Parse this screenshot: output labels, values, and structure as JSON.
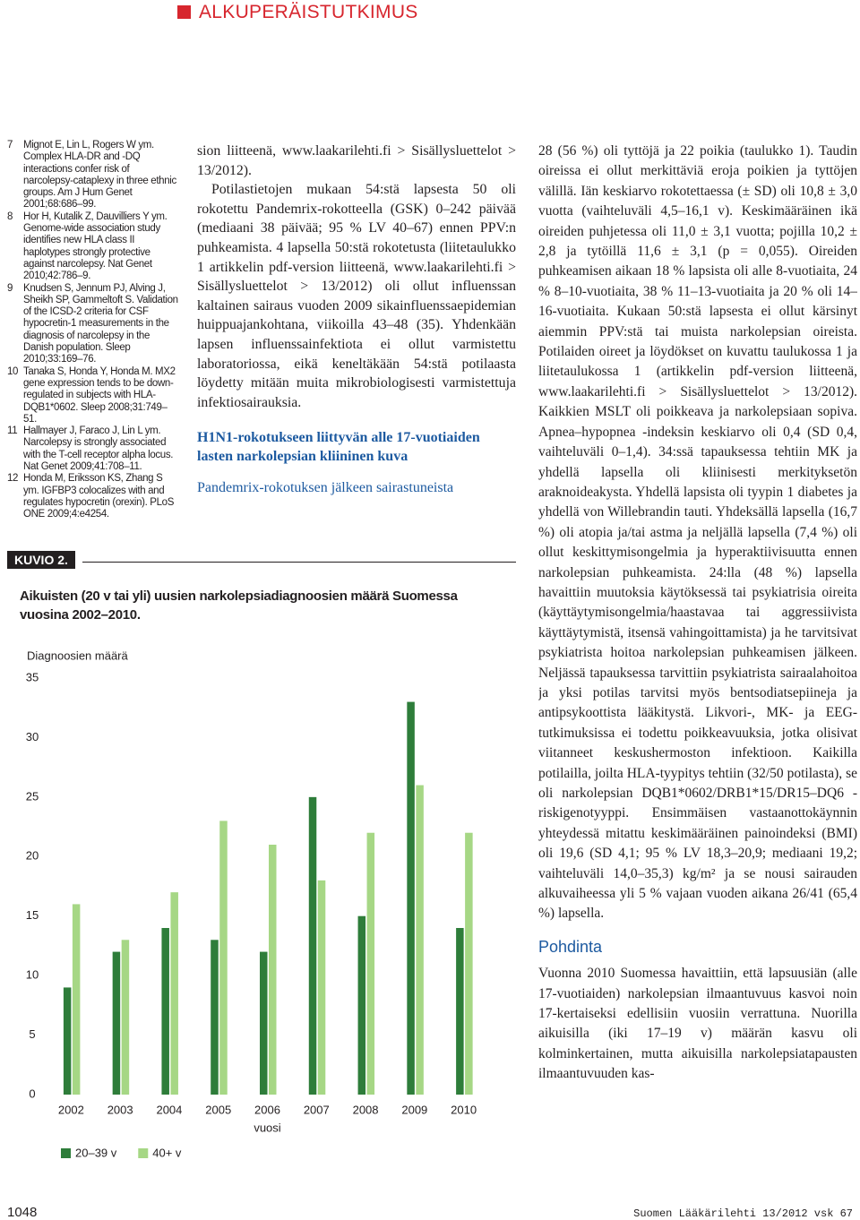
{
  "header": {
    "section": "ALKUPERÄISTUTKIMUS"
  },
  "references": [
    {
      "number": "7",
      "text": "Mignot E, Lin L, Rogers W ym. Complex HLA-DR and -DQ interactions confer risk of narcolepsy-cataplexy in three ethnic groups. Am J Hum Genet 2001;68:686–99."
    },
    {
      "number": "8",
      "text": "Hor H, Kutalik Z, Dauvilliers Y ym. Genome-wide association study identifies new HLA class II haplotypes strongly protective against narcolepsy. Nat Genet 2010;42:786–9."
    },
    {
      "number": "9",
      "text": "Knudsen S, Jennum PJ, Alving J, Sheikh SP, Gammeltoft S. Validation of the ICSD-2 criteria for CSF hypocretin-1 measurements in the diagnosis of narcolepsy in the Danish population. Sleep 2010;33:169–76."
    },
    {
      "number": "10",
      "text": "Tanaka S, Honda Y, Honda M. MX2 gene expression tends to be down-regulated in subjects with HLA-DQB1*0602. Sleep 2008;31:749–51."
    },
    {
      "number": "11",
      "text": "Hallmayer J, Faraco J, Lin L ym. Narcolepsy is strongly associated with the T-cell receptor alpha locus. Nat Genet 2009;41:708–11."
    },
    {
      "number": "12",
      "text": "Honda M, Eriksson KS, Zhang S ym. IGFBP3 colocalizes with and regulates hypocretin (orexin). PLoS ONE 2009;4:e4254."
    }
  ],
  "column2": {
    "paragraphs": [
      "sion liitteenä, www.laakarilehti.fi > Sisällysluettelot > 13/2012).",
      "Potilastietojen mukaan 54:stä lapsesta 50 oli rokotettu Pandemrix-rokotteella (GSK) 0–242 päivää (mediaani 38 päivää; 95 % LV 40–67) ennen PPV:n puhkeamista. 4 lapsella 50:stä rokotetusta (liitetaulukko 1 artikkelin pdf-version liitteenä, www.laakarilehti.fi > Sisällysluettelot > 13/2012) oli ollut influenssan kaltainen sairaus vuoden 2009 sikainfluenssaepidemian huippuajankohtana, viikoilla 43–48 (35). Yhdenkään lapsen influenssainfektiota ei ollut varmistettu laboratoriossa, eikä keneltäkään 54:stä potilaasta löydetty mitään muita mikrobiologisesti varmistettuja infektiosairauksia."
    ],
    "heading": "H1N1-rokotukseen liittyvän alle 17-vuotiaiden lasten narkolepsian kliininen kuva",
    "subparagraph": "Pandemrix-rokotuksen jälkeen sairastuneista"
  },
  "column3": {
    "paragraph": "28 (56 %) oli tyttöjä ja 22 poikia (taulukko 1). Taudin oireissa ei ollut merkittäviä eroja poikien ja tyttöjen välillä. Iän keskiarvo rokotettaessa (± SD) oli 10,8 ± 3,0 vuotta (vaihteluväli 4,5–16,1 v). Keskimääräinen ikä oireiden puhjetessa oli 11,0 ± 3,1 vuotta; pojilla 10,2 ± 2,8 ja tytöillä 11,6 ± 3,1 (p = 0,055). Oireiden puhkeamisen aikaan 18 % lapsista oli alle 8-vuotiaita, 24 % 8–10-vuotiaita, 38 % 11–13-vuotiaita ja 20 % oli 14–16-vuotiaita. Kukaan 50:stä lapsesta ei ollut kärsinyt aiemmin PPV:stä tai muista narkolepsian oireista. Potilaiden oireet ja löydökset on kuvattu taulukossa 1 ja liitetaulukossa 1 (artikkelin pdf-version liitteenä, www.laakarilehti.fi > Sisällysluettelot > 13/2012). Kaikkien MSLT oli poikkeava ja narkolepsiaan sopiva. Apnea–hypopnea -indeksin keskiarvo oli 0,4 (SD 0,4, vaihteluväli 0–1,4). 34:ssä tapauksessa tehtiin MK ja yhdellä lapsella oli kliinisesti merkityksetön araknoideakysta. Yhdellä lapsista oli tyypin 1 diabetes ja yhdellä von Willebrandin tauti. Yhdeksällä lapsella (16,7 %) oli atopia ja/tai astma ja neljällä lapsella (7,4 %) oli ollut keskittymisongelmia ja hyperaktiivisuutta ennen narkolepsian puhkeamista. 24:lla (48 %) lapsella havaittiin muutoksia käytöksessä tai psykiatrisia oireita (käyttäytymisongelmia/haastavaa tai aggressiivista käyttäytymistä, itsensä vahingoittamista) ja he tarvitsivat psykiatrista hoitoa narkolepsian puhkeamisen jälkeen. Neljässä tapauksessa tarvittiin psykiatrista sairaalahoitoa ja yksi potilas tarvitsi myös bentsodiatsepiineja ja antipsykoottista lääkitystä. Likvori-, MK- ja EEG-tutkimuksissa ei todettu poikkeavuuksia, jotka olisivat viitanneet keskushermoston infektioon. Kaikilla potilailla, joilta HLA-tyypitys tehtiin (32/50 potilasta), se oli narkolepsian DQB1*0602/DRB1*15/DR15–DQ6 -riskigenotyyppi. Ensimmäisen vastaanottokäynnin yhteydessä mitattu keskimääräinen painoindeksi (BMI) oli 19,6 (SD 4,1; 95 % LV 18,3–20,9; mediaani 19,2; vaihteluväli 14,0–35,3) kg/m² ja se nousi sairauden alkuvaiheessa yli 5 % vajaan vuoden aikana 26/41 (65,4 %) lapsella.",
    "heading": "Pohdinta",
    "discussion": "Vuonna 2010 Suomessa havaittiin, että lapsuusiän (alle 17-vuotiaiden) narkolepsian ilmaantuvuus kasvoi noin 17-kertaiseksi edellisiin vuosiin verrattuna. Nuorilla aikuisilla (iki 17–19 v) määrän kasvu oli kolminkertainen, mutta aikuisilla narkolepsiatapausten ilmaantuvuuden kas-"
  },
  "figure": {
    "label": "KUVIO 2."
  },
  "chart_data": {
    "type": "bar",
    "title": "Aikuisten (20 v tai yli) uusien narkolepsiadiagnoosien määrä Suomessa vuosina 2002–2010.",
    "y_label": "Diagnoosien määrä",
    "x_label": "vuosi",
    "categories": [
      "2002",
      "2003",
      "2004",
      "2005",
      "2006",
      "2007",
      "2008",
      "2009",
      "2010"
    ],
    "series": [
      {
        "name": "20–39 v",
        "color": "#2e7d3a",
        "values": [
          9,
          12,
          14,
          13,
          12,
          25,
          15,
          33,
          14
        ]
      },
      {
        "name": "40+ v",
        "color": "#a6d785",
        "values": [
          16,
          13,
          17,
          23,
          21,
          18,
          22,
          26,
          22
        ]
      }
    ],
    "ylim": [
      0,
      35
    ],
    "yticks": [
      0,
      5,
      10,
      15,
      20,
      25,
      30,
      35
    ],
    "grid": false
  },
  "footer": {
    "page": "1048",
    "journal": "Suomen Lääkärilehti 13/2012 vsk 67"
  }
}
